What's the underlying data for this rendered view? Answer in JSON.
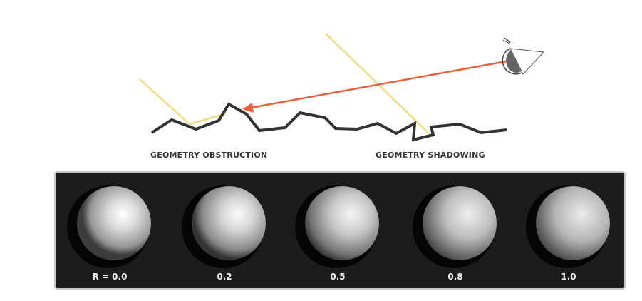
{
  "diagram": {
    "captions": {
      "obstruction": "GEOMETRY OBSTRUCTION",
      "shadowing": "GEOMETRY SHADOWING"
    },
    "colors": {
      "surface": "#333333",
      "light_ray": "#f0dc82",
      "view_ray": "#e8603c",
      "eye": "#666666"
    },
    "icons": [
      "eye-icon"
    ]
  },
  "spheres": [
    {
      "label": "R = 0.0",
      "roughness": 0.0
    },
    {
      "label": "0.2",
      "roughness": 0.2
    },
    {
      "label": "0.5",
      "roughness": 0.5
    },
    {
      "label": "0.8",
      "roughness": 0.8
    },
    {
      "label": "1.0",
      "roughness": 1.0
    }
  ],
  "panel": {
    "background": "#1c1c1c"
  }
}
